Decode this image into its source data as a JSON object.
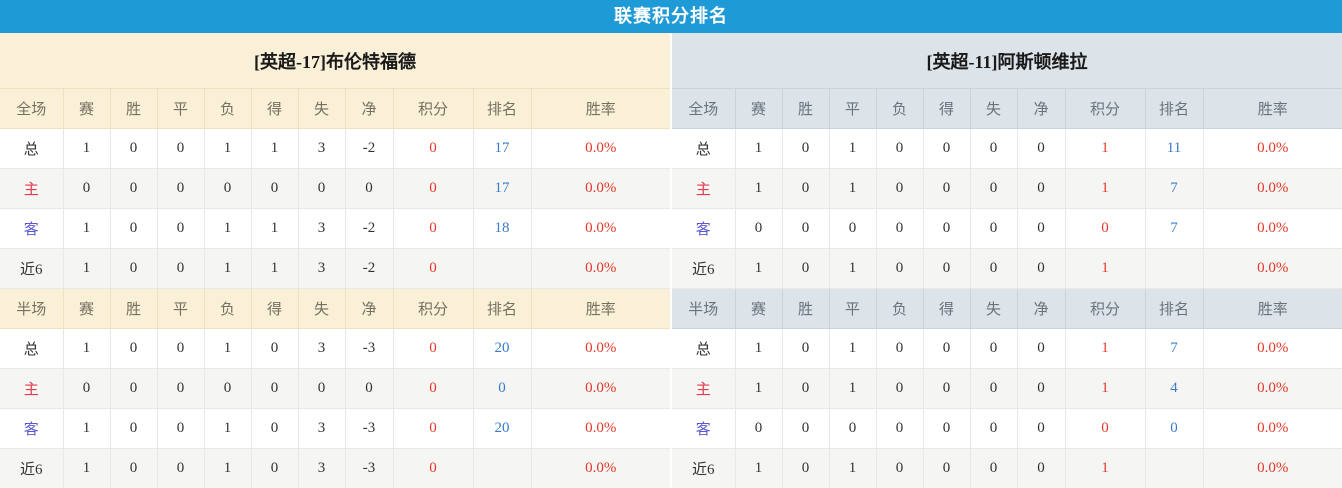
{
  "header": {
    "title": "联赛积分排名"
  },
  "colors": {
    "title_bar_bg": "#1e9ad6",
    "left_theme_bg": "#faf0d8",
    "right_theme_bg": "#dce3e9",
    "points_text": "#e5382b",
    "rank_text": "#3a7bc8",
    "win_rate_text": "#e5382b",
    "home_label_text": "#e23a4e",
    "away_label_text": "#5a5ad0"
  },
  "columns": {
    "headers": [
      "赛",
      "胜",
      "平",
      "负",
      "得",
      "失",
      "净",
      "积分",
      "排名",
      "胜率"
    ]
  },
  "teams": [
    {
      "name": "[英超-17]布伦特福德",
      "sections": [
        {
          "scope": "全场",
          "rows": [
            {
              "label": "总",
              "values": [
                "1",
                "0",
                "0",
                "1",
                "1",
                "3",
                "-2"
              ],
              "points": "0",
              "rank": "17",
              "win_rate": "0.0%"
            },
            {
              "label": "主",
              "values": [
                "0",
                "0",
                "0",
                "0",
                "0",
                "0",
                "0"
              ],
              "points": "0",
              "rank": "17",
              "win_rate": "0.0%"
            },
            {
              "label": "客",
              "values": [
                "1",
                "0",
                "0",
                "1",
                "1",
                "3",
                "-2"
              ],
              "points": "0",
              "rank": "18",
              "win_rate": "0.0%"
            },
            {
              "label": "近6",
              "values": [
                "1",
                "0",
                "0",
                "1",
                "1",
                "3",
                "-2"
              ],
              "points": "0",
              "rank": "",
              "win_rate": "0.0%"
            }
          ]
        },
        {
          "scope": "半场",
          "rows": [
            {
              "label": "总",
              "values": [
                "1",
                "0",
                "0",
                "1",
                "0",
                "3",
                "-3"
              ],
              "points": "0",
              "rank": "20",
              "win_rate": "0.0%"
            },
            {
              "label": "主",
              "values": [
                "0",
                "0",
                "0",
                "0",
                "0",
                "0",
                "0"
              ],
              "points": "0",
              "rank": "0",
              "win_rate": "0.0%"
            },
            {
              "label": "客",
              "values": [
                "1",
                "0",
                "0",
                "1",
                "0",
                "3",
                "-3"
              ],
              "points": "0",
              "rank": "20",
              "win_rate": "0.0%"
            },
            {
              "label": "近6",
              "values": [
                "1",
                "0",
                "0",
                "1",
                "0",
                "3",
                "-3"
              ],
              "points": "0",
              "rank": "",
              "win_rate": "0.0%"
            }
          ]
        }
      ]
    },
    {
      "name": "[英超-11]阿斯顿维拉",
      "sections": [
        {
          "scope": "全场",
          "rows": [
            {
              "label": "总",
              "values": [
                "1",
                "0",
                "1",
                "0",
                "0",
                "0",
                "0"
              ],
              "points": "1",
              "rank": "11",
              "win_rate": "0.0%"
            },
            {
              "label": "主",
              "values": [
                "1",
                "0",
                "1",
                "0",
                "0",
                "0",
                "0"
              ],
              "points": "1",
              "rank": "7",
              "win_rate": "0.0%"
            },
            {
              "label": "客",
              "values": [
                "0",
                "0",
                "0",
                "0",
                "0",
                "0",
                "0"
              ],
              "points": "0",
              "rank": "7",
              "win_rate": "0.0%"
            },
            {
              "label": "近6",
              "values": [
                "1",
                "0",
                "1",
                "0",
                "0",
                "0",
                "0"
              ],
              "points": "1",
              "rank": "",
              "win_rate": "0.0%"
            }
          ]
        },
        {
          "scope": "半场",
          "rows": [
            {
              "label": "总",
              "values": [
                "1",
                "0",
                "1",
                "0",
                "0",
                "0",
                "0"
              ],
              "points": "1",
              "rank": "7",
              "win_rate": "0.0%"
            },
            {
              "label": "主",
              "values": [
                "1",
                "0",
                "1",
                "0",
                "0",
                "0",
                "0"
              ],
              "points": "1",
              "rank": "4",
              "win_rate": "0.0%"
            },
            {
              "label": "客",
              "values": [
                "0",
                "0",
                "0",
                "0",
                "0",
                "0",
                "0"
              ],
              "points": "0",
              "rank": "0",
              "win_rate": "0.0%"
            },
            {
              "label": "近6",
              "values": [
                "1",
                "0",
                "1",
                "0",
                "0",
                "0",
                "0"
              ],
              "points": "1",
              "rank": "",
              "win_rate": "0.0%"
            }
          ]
        }
      ]
    }
  ]
}
